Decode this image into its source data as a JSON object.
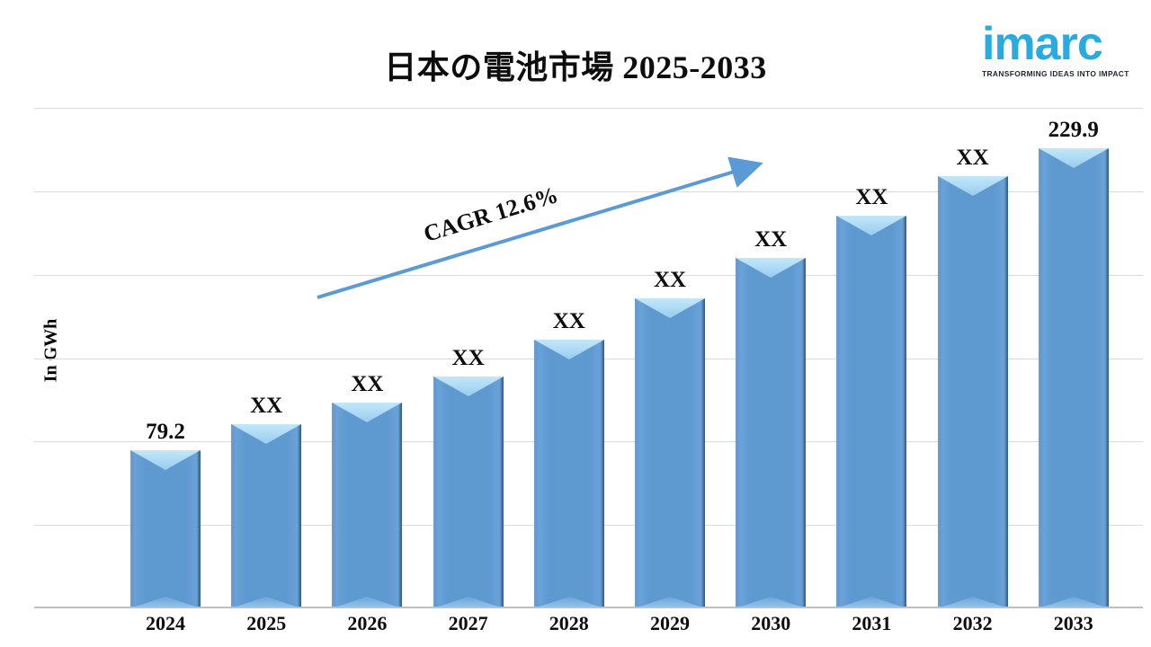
{
  "title": "日本の電池市場 2025-2033",
  "logo": {
    "name": "imarc",
    "tagline": "TRANSFORMING IDEAS INTO IMPACT",
    "color": "#29abe2"
  },
  "chart_data": {
    "type": "bar",
    "title": "日本の電池市場 2025-2033",
    "xlabel": "",
    "ylabel": "In GWh",
    "categories": [
      "2024",
      "2025",
      "2026",
      "2027",
      "2028",
      "2029",
      "2030",
      "2031",
      "2032",
      "2033"
    ],
    "bar_labels": [
      "79.2",
      "XX",
      "XX",
      "XX",
      "XX",
      "XX",
      "XX",
      "XX",
      "XX",
      "229.9"
    ],
    "values_gwh_estimated": [
      79.2,
      92,
      103,
      116,
      134,
      155,
      175,
      196,
      216,
      229.9
    ],
    "known_values_note": "Only 2024 (79.2) and 2033 (229.9) are labeled; intermediate bars show XX",
    "ylim": [
      0,
      250
    ],
    "grid": true,
    "gridline_intervals": 6,
    "legend_position": "none",
    "annotation": {
      "text": "CAGR 12.6%",
      "angle_deg": -17
    },
    "colors": {
      "bar": "#5b96ce",
      "bar_bevel_light": "#b9e2f8",
      "bar_edge_dark": "#396fa5",
      "arrow": "#5b9bd5",
      "gridline": "#d9d9d9",
      "axis_line": "#bfbfbf",
      "title_text": "#0d0d0d",
      "logo_blue": "#29abe2"
    }
  }
}
